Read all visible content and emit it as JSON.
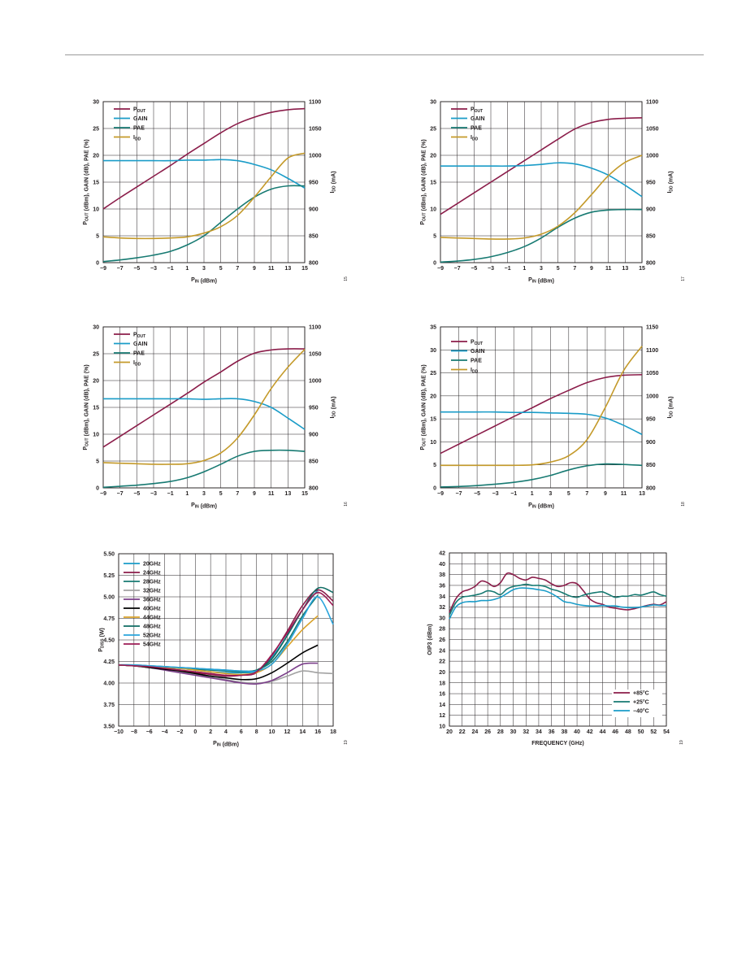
{
  "colors": {
    "pout": "#8b1d4a",
    "gain": "#1a9cc8",
    "pae": "#177a72",
    "idd": "#c49a2a",
    "grid": "#231f20",
    "rule": "#9a9a9a"
  },
  "chart_data": [
    {
      "type": "line",
      "x": [
        -9,
        -7,
        -5,
        -3,
        -1,
        1,
        3,
        5,
        7,
        9,
        11,
        13,
        15
      ],
      "xlabel": "PIN (dBm)",
      "xlim": [
        -9,
        15
      ],
      "xticks": [
        "-9",
        "-7",
        "-5",
        "-3",
        "-1",
        "1",
        "3",
        "5",
        "7",
        "9",
        "11",
        "13",
        "15"
      ],
      "ylabel_left": "POUT (dBm), GAIN (dB), PAE (%)",
      "ylim_left": [
        0,
        30
      ],
      "yticks_left": [
        "0",
        "5",
        "10",
        "15",
        "20",
        "25",
        "30"
      ],
      "ylabel_right": "IDD (mA)",
      "ylim_right": [
        800,
        1100
      ],
      "yticks_right": [
        "800",
        "850",
        "900",
        "950",
        "1000",
        "1050",
        "1100"
      ],
      "grid": true,
      "legend_position": "top-left",
      "figure_number": "15",
      "series": [
        {
          "name": "POUT",
          "axis": "left",
          "color_key": "pout",
          "values": [
            10.0,
            12.1,
            14.1,
            16.1,
            18.1,
            20.2,
            22.2,
            24.2,
            25.9,
            27.1,
            28.0,
            28.5,
            28.7
          ]
        },
        {
          "name": "GAIN",
          "axis": "left",
          "color_key": "gain",
          "values": [
            19.0,
            19.0,
            19.0,
            19.0,
            19.0,
            19.1,
            19.1,
            19.2,
            19.0,
            18.3,
            17.3,
            15.7,
            13.9
          ]
        },
        {
          "name": "PAE",
          "axis": "left",
          "color_key": "pae",
          "values": [
            0.2,
            0.5,
            0.9,
            1.4,
            2.1,
            3.3,
            5.0,
            7.5,
            10.0,
            12.2,
            13.7,
            14.3,
            14.3
          ]
        },
        {
          "name": "IDD",
          "axis": "right",
          "color_key": "idd",
          "values": [
            848,
            846,
            845,
            845,
            846,
            848,
            855,
            867,
            888,
            922,
            960,
            995,
            1004
          ]
        }
      ]
    },
    {
      "type": "line",
      "x": [
        -9,
        -7,
        -5,
        -3,
        -1,
        1,
        3,
        5,
        7,
        9,
        11,
        13,
        15
      ],
      "xlabel": "PIN (dBm)",
      "xlim": [
        -9,
        15
      ],
      "xticks": [
        "-9",
        "-7",
        "-5",
        "-3",
        "-1",
        "1",
        "3",
        "5",
        "7",
        "9",
        "11",
        "13",
        "15"
      ],
      "ylabel_left": "POUT (dBm), GAIN (dB), PAE (%)",
      "ylim_left": [
        0,
        30
      ],
      "yticks_left": [
        "0",
        "5",
        "10",
        "15",
        "20",
        "25",
        "30"
      ],
      "ylabel_right": "IDD (mA)",
      "ylim_right": [
        800,
        1100
      ],
      "yticks_right": [
        "800",
        "850",
        "900",
        "950",
        "1000",
        "1050",
        "1100"
      ],
      "grid": true,
      "legend_position": "top-left",
      "figure_number": "17",
      "series": [
        {
          "name": "POUT",
          "axis": "left",
          "color_key": "pout",
          "values": [
            9.0,
            11.0,
            13.0,
            15.0,
            17.0,
            19.0,
            21.0,
            23.0,
            24.9,
            26.1,
            26.7,
            26.9,
            27.0
          ]
        },
        {
          "name": "GAIN",
          "axis": "left",
          "color_key": "gain",
          "values": [
            18.0,
            18.0,
            18.0,
            18.0,
            18.0,
            18.1,
            18.3,
            18.6,
            18.4,
            17.6,
            16.3,
            14.4,
            12.3
          ]
        },
        {
          "name": "PAE",
          "axis": "left",
          "color_key": "pae",
          "values": [
            0.1,
            0.3,
            0.6,
            1.1,
            1.9,
            3.0,
            4.6,
            6.6,
            8.3,
            9.4,
            9.8,
            9.9,
            9.9
          ]
        },
        {
          "name": "IDD",
          "axis": "right",
          "color_key": "idd",
          "values": [
            847,
            846,
            845,
            844,
            844,
            846,
            853,
            868,
            893,
            927,
            962,
            987,
            1000
          ]
        }
      ]
    },
    {
      "type": "line",
      "x": [
        -9,
        -7,
        -5,
        -3,
        -1,
        1,
        3,
        5,
        7,
        9,
        11,
        13,
        15
      ],
      "xlabel": "PIN (dBm)",
      "xlim": [
        -9,
        15
      ],
      "xticks": [
        "-9",
        "-7",
        "-5",
        "-3",
        "-1",
        "1",
        "3",
        "5",
        "7",
        "9",
        "11",
        "13",
        "15"
      ],
      "ylabel_left": "POUT (dBm), GAIN (dB), PAE (%)",
      "ylim_left": [
        0,
        30
      ],
      "yticks_left": [
        "0",
        "5",
        "10",
        "15",
        "20",
        "25",
        "30"
      ],
      "ylabel_right": "IDD (mA)",
      "ylim_right": [
        800,
        1100
      ],
      "yticks_right": [
        "800",
        "850",
        "900",
        "950",
        "1000",
        "1050",
        "1100"
      ],
      "grid": true,
      "legend_position": "top-left",
      "figure_number": "16",
      "series": [
        {
          "name": "POUT",
          "axis": "left",
          "color_key": "pout",
          "values": [
            7.6,
            9.6,
            11.6,
            13.6,
            15.6,
            17.6,
            19.7,
            21.6,
            23.6,
            25.1,
            25.7,
            25.9,
            25.9
          ]
        },
        {
          "name": "GAIN",
          "axis": "left",
          "color_key": "gain",
          "values": [
            16.6,
            16.6,
            16.6,
            16.6,
            16.6,
            16.6,
            16.5,
            16.6,
            16.6,
            16.1,
            15.0,
            13.0,
            10.9
          ]
        },
        {
          "name": "PAE",
          "axis": "left",
          "color_key": "pae",
          "values": [
            0.1,
            0.3,
            0.5,
            0.8,
            1.2,
            1.9,
            3.0,
            4.4,
            5.9,
            6.8,
            7.0,
            7.0,
            6.8
          ]
        },
        {
          "name": "IDD",
          "axis": "right",
          "color_key": "idd",
          "values": [
            847,
            846,
            845,
            844,
            844,
            845,
            851,
            865,
            893,
            936,
            985,
            1025,
            1058
          ]
        }
      ]
    },
    {
      "type": "line",
      "x": [
        -9,
        -7,
        -5,
        -3,
        -1,
        1,
        3,
        5,
        7,
        9,
        11,
        13
      ],
      "xlabel": "PIN (dBm)",
      "xlim": [
        -9,
        13
      ],
      "xticks": [
        "-9",
        "-7",
        "-5",
        "-3",
        "-1",
        "1",
        "3",
        "5",
        "7",
        "9",
        "11",
        "13"
      ],
      "ylabel_left": "POUT (dBm), GAIN (dB), PAE (%)",
      "ylim_left": [
        0,
        35
      ],
      "yticks_left": [
        "0",
        "5",
        "10",
        "15",
        "20",
        "25",
        "30",
        "35"
      ],
      "ylabel_right": "IDD (mA)",
      "ylim_right": [
        800,
        1150
      ],
      "yticks_right": [
        "800",
        "850",
        "900",
        "950",
        "1000",
        "1050",
        "1100",
        "1150"
      ],
      "grid": true,
      "legend_position": "top-left",
      "figure_number": "18",
      "series": [
        {
          "name": "POUT",
          "axis": "left",
          "color_key": "pout",
          "values": [
            7.5,
            9.5,
            11.5,
            13.5,
            15.5,
            17.4,
            19.4,
            21.2,
            22.9,
            24.0,
            24.5,
            24.6
          ]
        },
        {
          "name": "GAIN",
          "axis": "left",
          "color_key": "gain",
          "values": [
            16.5,
            16.5,
            16.5,
            16.5,
            16.4,
            16.4,
            16.3,
            16.2,
            16.0,
            15.2,
            13.6,
            11.6
          ]
        },
        {
          "name": "PAE",
          "axis": "left",
          "color_key": "pae",
          "values": [
            0.2,
            0.3,
            0.5,
            0.8,
            1.2,
            1.8,
            2.7,
            3.9,
            4.8,
            5.2,
            5.1,
            4.9
          ]
        },
        {
          "name": "IDD",
          "axis": "right",
          "color_key": "idd",
          "values": [
            849,
            849,
            849,
            849,
            849,
            850,
            856,
            870,
            905,
            975,
            1055,
            1108
          ]
        }
      ]
    },
    {
      "type": "line",
      "x": [
        -10,
        -8,
        -6,
        -4,
        -2,
        0,
        2,
        4,
        6,
        8,
        10,
        12,
        14,
        16,
        18
      ],
      "xlabel": "PIN (dBm)",
      "xlim": [
        -10,
        18
      ],
      "xticks": [
        "-10",
        "-8",
        "-6",
        "-4",
        "-2",
        "0",
        "2",
        "4",
        "6",
        "8",
        "10",
        "12",
        "14",
        "16",
        "18"
      ],
      "ylabel_left": "PDISS (W)",
      "ylim_left": [
        3.5,
        5.5
      ],
      "yticks_left": [
        "3.50",
        "3.75",
        "4.00",
        "4.25",
        "4.50",
        "4.75",
        "5.00",
        "5.25",
        "5.50"
      ],
      "grid": true,
      "legend_position": "top-left",
      "figure_number": "19",
      "series": [
        {
          "name": "20GHz",
          "color": "#1a9cc8",
          "values": [
            4.21,
            4.2,
            4.19,
            4.18,
            4.17,
            4.15,
            4.13,
            4.12,
            4.12,
            4.14,
            4.3,
            4.55,
            4.85,
            5.08,
            null
          ]
        },
        {
          "name": "24GHz",
          "color": "#8b1d4a",
          "values": [
            4.21,
            4.2,
            4.18,
            4.16,
            4.14,
            4.12,
            4.1,
            4.08,
            4.09,
            4.12,
            4.32,
            4.6,
            4.9,
            5.08,
            4.95
          ]
        },
        {
          "name": "28GHz",
          "color": "#177a72",
          "values": [
            4.21,
            4.2,
            4.19,
            4.18,
            4.17,
            4.16,
            4.15,
            4.14,
            4.13,
            4.15,
            4.25,
            4.48,
            4.78,
            5.02,
            null
          ]
        },
        {
          "name": "32GHz",
          "color": "#a3a3a3",
          "values": [
            4.21,
            4.2,
            4.18,
            4.16,
            4.13,
            4.1,
            4.07,
            4.04,
            4.01,
            4.0,
            4.02,
            4.08,
            4.14,
            4.12,
            4.11
          ]
        },
        {
          "name": "36GHz",
          "color": "#7b3f8a",
          "values": [
            4.21,
            4.2,
            4.18,
            4.15,
            4.12,
            4.09,
            4.06,
            4.03,
            4.0,
            3.99,
            4.03,
            4.12,
            4.22,
            4.23,
            null
          ]
        },
        {
          "name": "40GHz",
          "color": "#000000",
          "values": [
            4.21,
            4.2,
            4.18,
            4.16,
            4.14,
            4.11,
            4.08,
            4.06,
            4.04,
            4.05,
            4.12,
            4.23,
            4.35,
            4.44,
            null
          ]
        },
        {
          "name": "44GHz",
          "color": "#d9a22a",
          "values": [
            4.21,
            4.2,
            4.19,
            4.18,
            4.17,
            4.15,
            4.13,
            4.11,
            4.1,
            4.12,
            4.22,
            4.42,
            4.62,
            4.78,
            null
          ]
        },
        {
          "name": "48GHz",
          "color": "#0f6b63",
          "values": [
            4.21,
            4.21,
            4.2,
            4.19,
            4.18,
            4.17,
            4.16,
            4.15,
            4.14,
            4.15,
            4.28,
            4.55,
            4.85,
            5.1,
            5.05
          ]
        },
        {
          "name": "52GHz",
          "color": "#29a4dc",
          "values": [
            4.21,
            4.21,
            4.2,
            4.19,
            4.18,
            4.17,
            4.16,
            4.15,
            4.14,
            4.14,
            4.22,
            4.45,
            4.75,
            5.0,
            4.68
          ]
        },
        {
          "name": "54GHz",
          "color": "#9b1b54",
          "values": [
            4.21,
            4.2,
            4.19,
            4.17,
            4.15,
            4.13,
            4.11,
            4.09,
            4.09,
            4.13,
            4.33,
            4.58,
            4.85,
            5.05,
            4.9
          ]
        }
      ]
    },
    {
      "type": "line",
      "x": [
        20,
        21,
        22,
        23,
        24,
        25,
        26,
        27,
        28,
        29,
        30,
        31,
        32,
        33,
        34,
        35,
        36,
        37,
        38,
        39,
        40,
        41,
        42,
        43,
        44,
        45,
        46,
        47,
        48,
        49,
        50,
        51,
        52,
        53,
        54
      ],
      "xlabel": "FREQUENCY (GHz)",
      "xlim": [
        20,
        54
      ],
      "xticks": [
        "20",
        "22",
        "24",
        "26",
        "28",
        "30",
        "32",
        "34",
        "36",
        "38",
        "40",
        "42",
        "44",
        "46",
        "48",
        "50",
        "52",
        "54"
      ],
      "ylabel_left": "OIP3 (dBm)",
      "ylim_left": [
        10,
        42
      ],
      "yticks_left": [
        "10",
        "12",
        "14",
        "16",
        "18",
        "20",
        "22",
        "24",
        "26",
        "28",
        "30",
        "32",
        "34",
        "36",
        "38",
        "40",
        "42"
      ],
      "grid": true,
      "legend_position": "bottom-right",
      "figure_number": "19",
      "series": [
        {
          "name": "+85°C",
          "color": "#8b1d4a",
          "values": [
            31,
            33.5,
            34.8,
            35.2,
            35.8,
            36.8,
            36.5,
            35.8,
            36.5,
            38.2,
            38.0,
            37.3,
            37.0,
            37.5,
            37.3,
            37.0,
            36.3,
            35.8,
            36.0,
            36.5,
            36.3,
            35.0,
            33.5,
            32.8,
            32.5,
            32.0,
            31.8,
            31.6,
            31.5,
            31.7,
            32.0,
            32.3,
            32.5,
            32.4,
            33.0
          ]
        },
        {
          "name": "+25°C",
          "color": "#177a72",
          "values": [
            30.5,
            32.8,
            33.8,
            34.0,
            34.2,
            34.5,
            35.0,
            34.8,
            34.3,
            35.3,
            35.8,
            36.0,
            36.2,
            36.0,
            36.0,
            35.8,
            35.3,
            35.0,
            34.5,
            34.0,
            33.8,
            34.2,
            34.5,
            34.7,
            34.8,
            34.3,
            33.8,
            34.0,
            34.0,
            34.3,
            34.2,
            34.5,
            34.8,
            34.3,
            34.0
          ]
        },
        {
          "name": "−40°C",
          "color": "#1a9cc8",
          "values": [
            29.8,
            32.0,
            32.8,
            33.0,
            33.0,
            33.2,
            33.2,
            33.4,
            33.8,
            34.5,
            35.2,
            35.5,
            35.5,
            35.4,
            35.2,
            35.0,
            34.5,
            33.8,
            33.0,
            32.8,
            32.5,
            32.3,
            32.2,
            32.2,
            32.3,
            32.2,
            32.2,
            32.0,
            31.9,
            31.9,
            32.0,
            32.2,
            32.4,
            32.3,
            32.3
          ]
        }
      ]
    }
  ]
}
